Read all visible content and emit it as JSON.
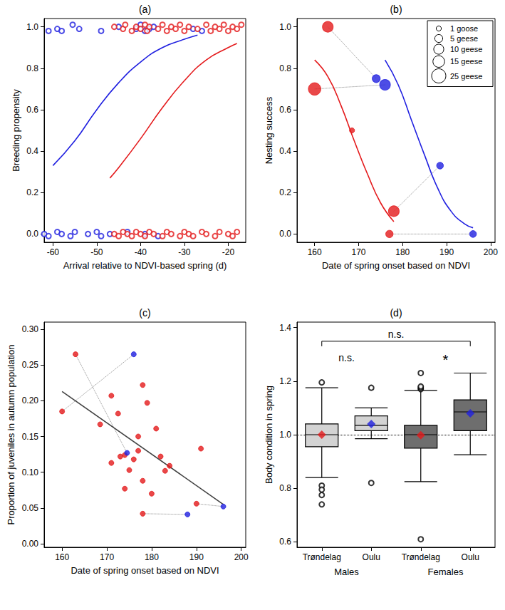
{
  "chart_data": [
    {
      "type": "scatter",
      "title": "(a)",
      "x_label": "Arrival relative to NDVI-based spring (d)",
      "y_label": "Breeding propensity",
      "xlim": [
        -62,
        -16
      ],
      "xticks": [
        -60,
        -50,
        -40,
        -30,
        -20
      ],
      "ylim": [
        -0.04,
        1.04
      ],
      "yticks": [
        {
          "value": 0,
          "label": "0.0"
        },
        0.2,
        0.4,
        0.6,
        0.8,
        {
          "value": 1,
          "label": "1.0"
        }
      ],
      "grid": false,
      "series": [
        {
          "type": "scatter",
          "color": "#2020e0",
          "marker": "open_circle",
          "x": [
            -61,
            -59,
            -58,
            -55.5,
            -54,
            -49,
            -45,
            -41,
            -40,
            -39,
            -38,
            -37,
            -28,
            -26,
            -62,
            -61,
            -59,
            -58,
            -56,
            -55,
            -52,
            -50,
            -49,
            -47,
            -43,
            -39,
            -36
          ],
          "y": [
            0.98,
            0.99,
            0.98,
            1.01,
            0.99,
            0.98,
            1.0,
            0.99,
            1.01,
            0.98,
            0.99,
            1.0,
            0.99,
            0.98,
            0.0,
            -0.01,
            0.01,
            0.0,
            -0.01,
            0.01,
            0.0,
            0.01,
            -0.01,
            0.0,
            0.01,
            0.0,
            -0.01
          ]
        },
        {
          "type": "scatter",
          "color": "#e41a1c",
          "marker": "open_circle",
          "x": [
            -46,
            -44,
            -43.5,
            -42,
            -41,
            -40,
            -39,
            -38.5,
            -38,
            -36,
            -35,
            -34,
            -33,
            -32,
            -31,
            -30,
            -29,
            -27,
            -25,
            -24,
            -23,
            -22,
            -21,
            -20,
            -19,
            -18,
            -17,
            -46,
            -45,
            -44,
            -43,
            -42,
            -41,
            -40,
            -39,
            -38,
            -37,
            -35,
            -34,
            -33,
            -31,
            -30,
            -29,
            -28,
            -26,
            -25,
            -23,
            -22,
            -20,
            -19,
            -18
          ],
          "y": [
            1.0,
            0.99,
            1.01,
            0.98,
            1.0,
            0.99,
            1.01,
            0.98,
            1.0,
            0.99,
            1.01,
            0.98,
            1.0,
            0.99,
            1.01,
            0.98,
            1.0,
            0.99,
            1.01,
            0.98,
            1.0,
            0.99,
            1.01,
            0.98,
            1.0,
            0.99,
            1.01,
            0.0,
            -0.01,
            0.01,
            0.0,
            -0.01,
            0.01,
            0.0,
            -0.01,
            0.01,
            0.0,
            -0.01,
            0.01,
            0.0,
            -0.01,
            0.01,
            0.0,
            -0.01,
            0.01,
            0.0,
            -0.01,
            0.01,
            0.0,
            -0.01,
            0.01
          ]
        },
        {
          "type": "line",
          "color": "#2020e0",
          "line_style": "solid",
          "x": [
            -60,
            -55,
            -50,
            -45,
            -40,
            -35,
            -30,
            -27
          ],
          "y": [
            0.33,
            0.45,
            0.6,
            0.73,
            0.83,
            0.9,
            0.94,
            0.96
          ]
        },
        {
          "type": "line",
          "color": "#e41a1c",
          "line_style": "solid",
          "x": [
            -47,
            -45,
            -40,
            -35,
            -30,
            -25,
            -20,
            -18
          ],
          "y": [
            0.27,
            0.32,
            0.46,
            0.61,
            0.74,
            0.84,
            0.9,
            0.92
          ]
        }
      ]
    },
    {
      "type": "scatter",
      "title": "(b)",
      "x_label": "Date of spring onset based on NDVI",
      "y_label": "Nesting success",
      "xlim": [
        156,
        201
      ],
      "xticks": [
        160,
        170,
        180,
        190,
        200
      ],
      "ylim": [
        -0.04,
        1.04
      ],
      "yticks": [
        {
          "value": 0,
          "label": "0.0"
        },
        0.2,
        0.4,
        0.6,
        0.8,
        {
          "value": 1,
          "label": "1.0"
        }
      ],
      "grid": false,
      "series": [
        {
          "type": "scatter",
          "color": "#e41a1c",
          "marker": "filled_circle",
          "x": [
            163,
            160,
            168.5,
            178,
            177
          ],
          "y": [
            1.0,
            0.7,
            0.5,
            0.11,
            0.0
          ],
          "sizes": [
            12,
            18,
            1,
            12,
            4
          ]
        },
        {
          "type": "scatter",
          "color": "#2020e0",
          "marker": "filled_circle",
          "x": [
            174,
            176,
            188.5,
            196
          ],
          "y": [
            0.75,
            0.72,
            0.33,
            0.0
          ],
          "sizes": [
            5,
            12,
            3,
            3
          ]
        },
        {
          "type": "line",
          "color": "#e41a1c",
          "line_style": "solid",
          "x": [
            160,
            163,
            166,
            169,
            172,
            175,
            178
          ],
          "y": [
            0.84,
            0.76,
            0.62,
            0.45,
            0.29,
            0.15,
            0.06
          ]
        },
        {
          "type": "line",
          "color": "#2020e0",
          "line_style": "solid",
          "x": [
            176,
            179,
            182,
            185,
            188,
            191,
            194,
            196
          ],
          "y": [
            0.84,
            0.72,
            0.55,
            0.38,
            0.22,
            0.11,
            0.05,
            0.03
          ]
        }
      ],
      "links": [
        {
          "from": [
            0,
            0
          ],
          "to": [
            1,
            0
          ]
        },
        {
          "from": [
            0,
            1
          ],
          "to": [
            1,
            1
          ]
        },
        {
          "from": [
            0,
            3
          ],
          "to": [
            1,
            2
          ]
        },
        {
          "from": [
            0,
            4
          ],
          "to": [
            1,
            3
          ]
        }
      ],
      "size_key": [
        {
          "value": 1,
          "label": "1 goose"
        },
        {
          "value": 5,
          "label": "5 geese"
        },
        {
          "value": 10,
          "label": "10 geese"
        },
        {
          "value": 15,
          "label": "15 geese"
        },
        {
          "value": 25,
          "label": "25 geese"
        }
      ]
    },
    {
      "type": "scatter",
      "title": "(c)",
      "x_label": "Date of spring onset based on NDVI",
      "y_label": "Proportion of juveniles in autumn population",
      "xlim": [
        156,
        201
      ],
      "xticks": [
        160,
        170,
        180,
        190,
        200
      ],
      "ylim": [
        -0.005,
        0.31
      ],
      "yticks": [
        {
          "value": 0,
          "label": "0.00"
        },
        0.05,
        {
          "value": 0.1,
          "label": "0.10"
        },
        0.15,
        {
          "value": 0.2,
          "label": "0.20"
        },
        0.25,
        {
          "value": 0.3,
          "label": "0.30"
        }
      ],
      "grid": false,
      "series": [
        {
          "type": "scatter",
          "color": "#e41a1c",
          "marker": "filled_circle",
          "x": [
            160,
            163,
            168.5,
            171,
            171,
            172.5,
            173,
            174,
            174,
            175,
            176,
            177,
            177,
            178,
            178,
            178,
            179,
            180,
            181,
            182,
            183,
            184,
            190,
            191
          ],
          "y": [
            0.185,
            0.265,
            0.167,
            0.207,
            0.113,
            0.182,
            0.122,
            0.077,
            0.124,
            0.103,
            0.118,
            0.13,
            0.15,
            0.088,
            0.222,
            0.042,
            0.197,
            0.07,
            0.161,
            0.122,
            0.102,
            0.109,
            0.056,
            0.133
          ]
        },
        {
          "type": "scatter",
          "color": "#2020e0",
          "marker": "filled_circle",
          "x": [
            174.5,
            176,
            188,
            196
          ],
          "y": [
            0.127,
            0.265,
            0.041,
            0.052
          ]
        },
        {
          "type": "line",
          "color": "#404040",
          "line_style": "solid",
          "x": [
            160,
            196
          ],
          "y": [
            0.213,
            0.055
          ]
        }
      ],
      "links": [
        {
          "from": [
            0,
            1
          ],
          "to": [
            1,
            0
          ]
        },
        {
          "from": [
            0,
            0
          ],
          "to": [
            1,
            1
          ]
        },
        {
          "from": [
            0,
            15
          ],
          "to": [
            1,
            2
          ]
        },
        {
          "from": [
            0,
            22
          ],
          "to": [
            1,
            3
          ]
        }
      ]
    },
    {
      "type": "boxplot",
      "title": "(d)",
      "y_label": "Body condition in spring",
      "categories": [
        "Trøndelag",
        "Oulu",
        "Trøndelag",
        "Oulu"
      ],
      "groups": [
        "Males",
        "Females"
      ],
      "ylim": [
        0.58,
        1.42
      ],
      "yticks": [
        0.6,
        0.8,
        {
          "value": 1,
          "label": "1.0"
        },
        1.2,
        1.4
      ],
      "grid": false,
      "marker": "diamond",
      "boxes": [
        {
          "min": 0.84,
          "q1": 0.955,
          "median": 1.0,
          "q3": 1.04,
          "max": 1.175,
          "mean": 1.0,
          "outliers": [
            0.81,
            0.795,
            0.775,
            0.74,
            1.195
          ],
          "color": "#d3d3d3",
          "mean_color": "#e41a1c"
        },
        {
          "min": 0.985,
          "q1": 1.015,
          "median": 1.035,
          "q3": 1.07,
          "max": 1.1,
          "mean": 1.04,
          "outliers": [
            0.82,
            1.175
          ],
          "color": "#d3d3d3",
          "mean_color": "#2020e0"
        },
        {
          "min": 0.825,
          "q1": 0.95,
          "median": 1.0,
          "q3": 1.035,
          "max": 1.165,
          "mean": 0.998,
          "outliers": [
            0.61,
            1.17,
            1.175,
            1.18,
            1.23
          ],
          "color": "#6e6e6e",
          "mean_color": "#e41a1c"
        },
        {
          "min": 0.925,
          "q1": 1.015,
          "median": 1.085,
          "q3": 1.13,
          "max": 1.23,
          "mean": 1.08,
          "outliers": [],
          "color": "#6e6e6e",
          "mean_color": "#2020e0"
        }
      ],
      "reference_lines": [
        {
          "y": 1,
          "line_style": "dotted"
        }
      ],
      "annotations": [
        {
          "text": "n.s.",
          "span": [
            0,
            1
          ]
        },
        {
          "text": "n.s.",
          "span": [
            0,
            3
          ],
          "bracket": true
        },
        {
          "text": "*",
          "span": [
            2,
            3
          ]
        }
      ]
    }
  ]
}
